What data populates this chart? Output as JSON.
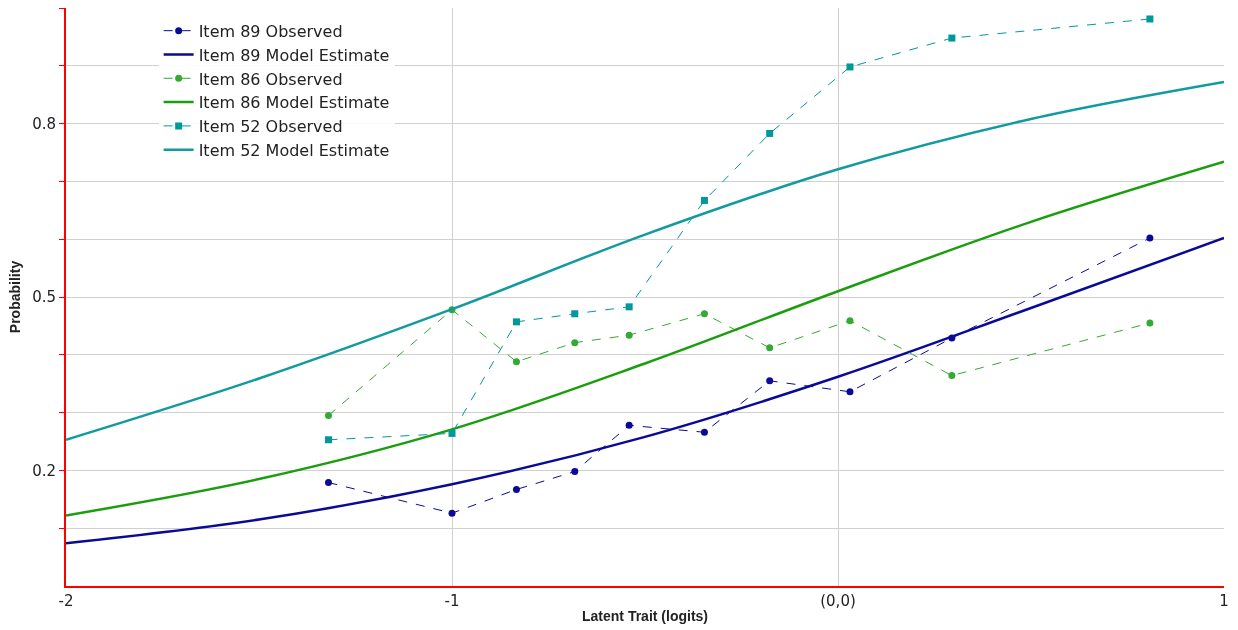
{
  "chart_data": {
    "type": "line",
    "xlabel": "Latent Trait (logits)",
    "ylabel": "Probability",
    "xlim": [
      -2,
      1
    ],
    "xticks": [
      -2,
      -1,
      {
        "value": 0,
        "label": "(0,0)"
      },
      1
    ],
    "ylim": [
      0,
      1
    ],
    "yticks": [
      {
        "value": 0.1,
        "label": null
      },
      0.2,
      {
        "value": 0.3,
        "label": null
      },
      {
        "value": 0.4,
        "label": null
      },
      0.5,
      {
        "value": 0.6,
        "label": null
      },
      {
        "value": 0.7,
        "label": null
      },
      0.8,
      {
        "value": 0.9,
        "label": null
      },
      {
        "value": 1.0,
        "label": null
      }
    ],
    "grid": true,
    "legend": "top left",
    "series": [
      {
        "name": "Item 89 Observed",
        "color": "#0a0a96",
        "marker": "circle",
        "line_style": "dashed",
        "x": [
          -1.32,
          -1.0,
          -0.833,
          -0.682,
          -0.541,
          -0.346,
          -0.177,
          0.031,
          0.295,
          0.808
        ],
        "values": [
          0.179,
          0.126,
          0.167,
          0.198,
          0.278,
          0.266,
          0.355,
          0.336,
          0.429,
          0.602
        ]
      },
      {
        "name": "Item 89 Model Estimate",
        "color": "#0a0a96",
        "marker": "none",
        "line_style": "solid",
        "x": [
          -2,
          -1.5,
          -1,
          -0.5,
          0,
          0.5,
          1
        ],
        "values": [
          0.074,
          0.115,
          0.176,
          0.258,
          0.362,
          0.481,
          0.602
        ]
      },
      {
        "name": "Item 86 Observed",
        "color": "#33aa33",
        "marker": "circle",
        "line_style": "dashed",
        "x": [
          -1.32,
          -1.0,
          -0.833,
          -0.682,
          -0.541,
          -0.346,
          -0.177,
          0.031,
          0.295,
          0.808
        ],
        "values": [
          0.295,
          0.478,
          0.388,
          0.421,
          0.434,
          0.471,
          0.412,
          0.459,
          0.364,
          0.455
        ]
      },
      {
        "name": "Item 86 Model Estimate",
        "color": "#1a9e0e",
        "marker": "none",
        "line_style": "solid",
        "x": [
          -2,
          -1.5,
          -1,
          -0.5,
          0,
          0.5,
          1
        ],
        "values": [
          0.122,
          0.185,
          0.271,
          0.385,
          0.51,
          0.63,
          0.734
        ]
      },
      {
        "name": "Item 52 Observed",
        "color": "#009999",
        "marker": "square",
        "line_style": "dashed",
        "x": [
          -1.32,
          -1.0,
          -0.833,
          -0.682,
          -0.541,
          -0.346,
          -0.177,
          0.031,
          0.295,
          0.808
        ],
        "values": [
          0.253,
          0.264,
          0.457,
          0.471,
          0.483,
          0.667,
          0.783,
          0.898,
          0.948,
          0.981
        ]
      },
      {
        "name": "Item 52 Model Estimate",
        "color": "#119aa0",
        "marker": "none",
        "line_style": "solid",
        "x": [
          -2,
          -1.5,
          -1,
          -0.5,
          0,
          0.5,
          1
        ],
        "values": [
          0.253,
          0.359,
          0.479,
          0.608,
          0.721,
          0.808,
          0.872
        ]
      }
    ]
  }
}
